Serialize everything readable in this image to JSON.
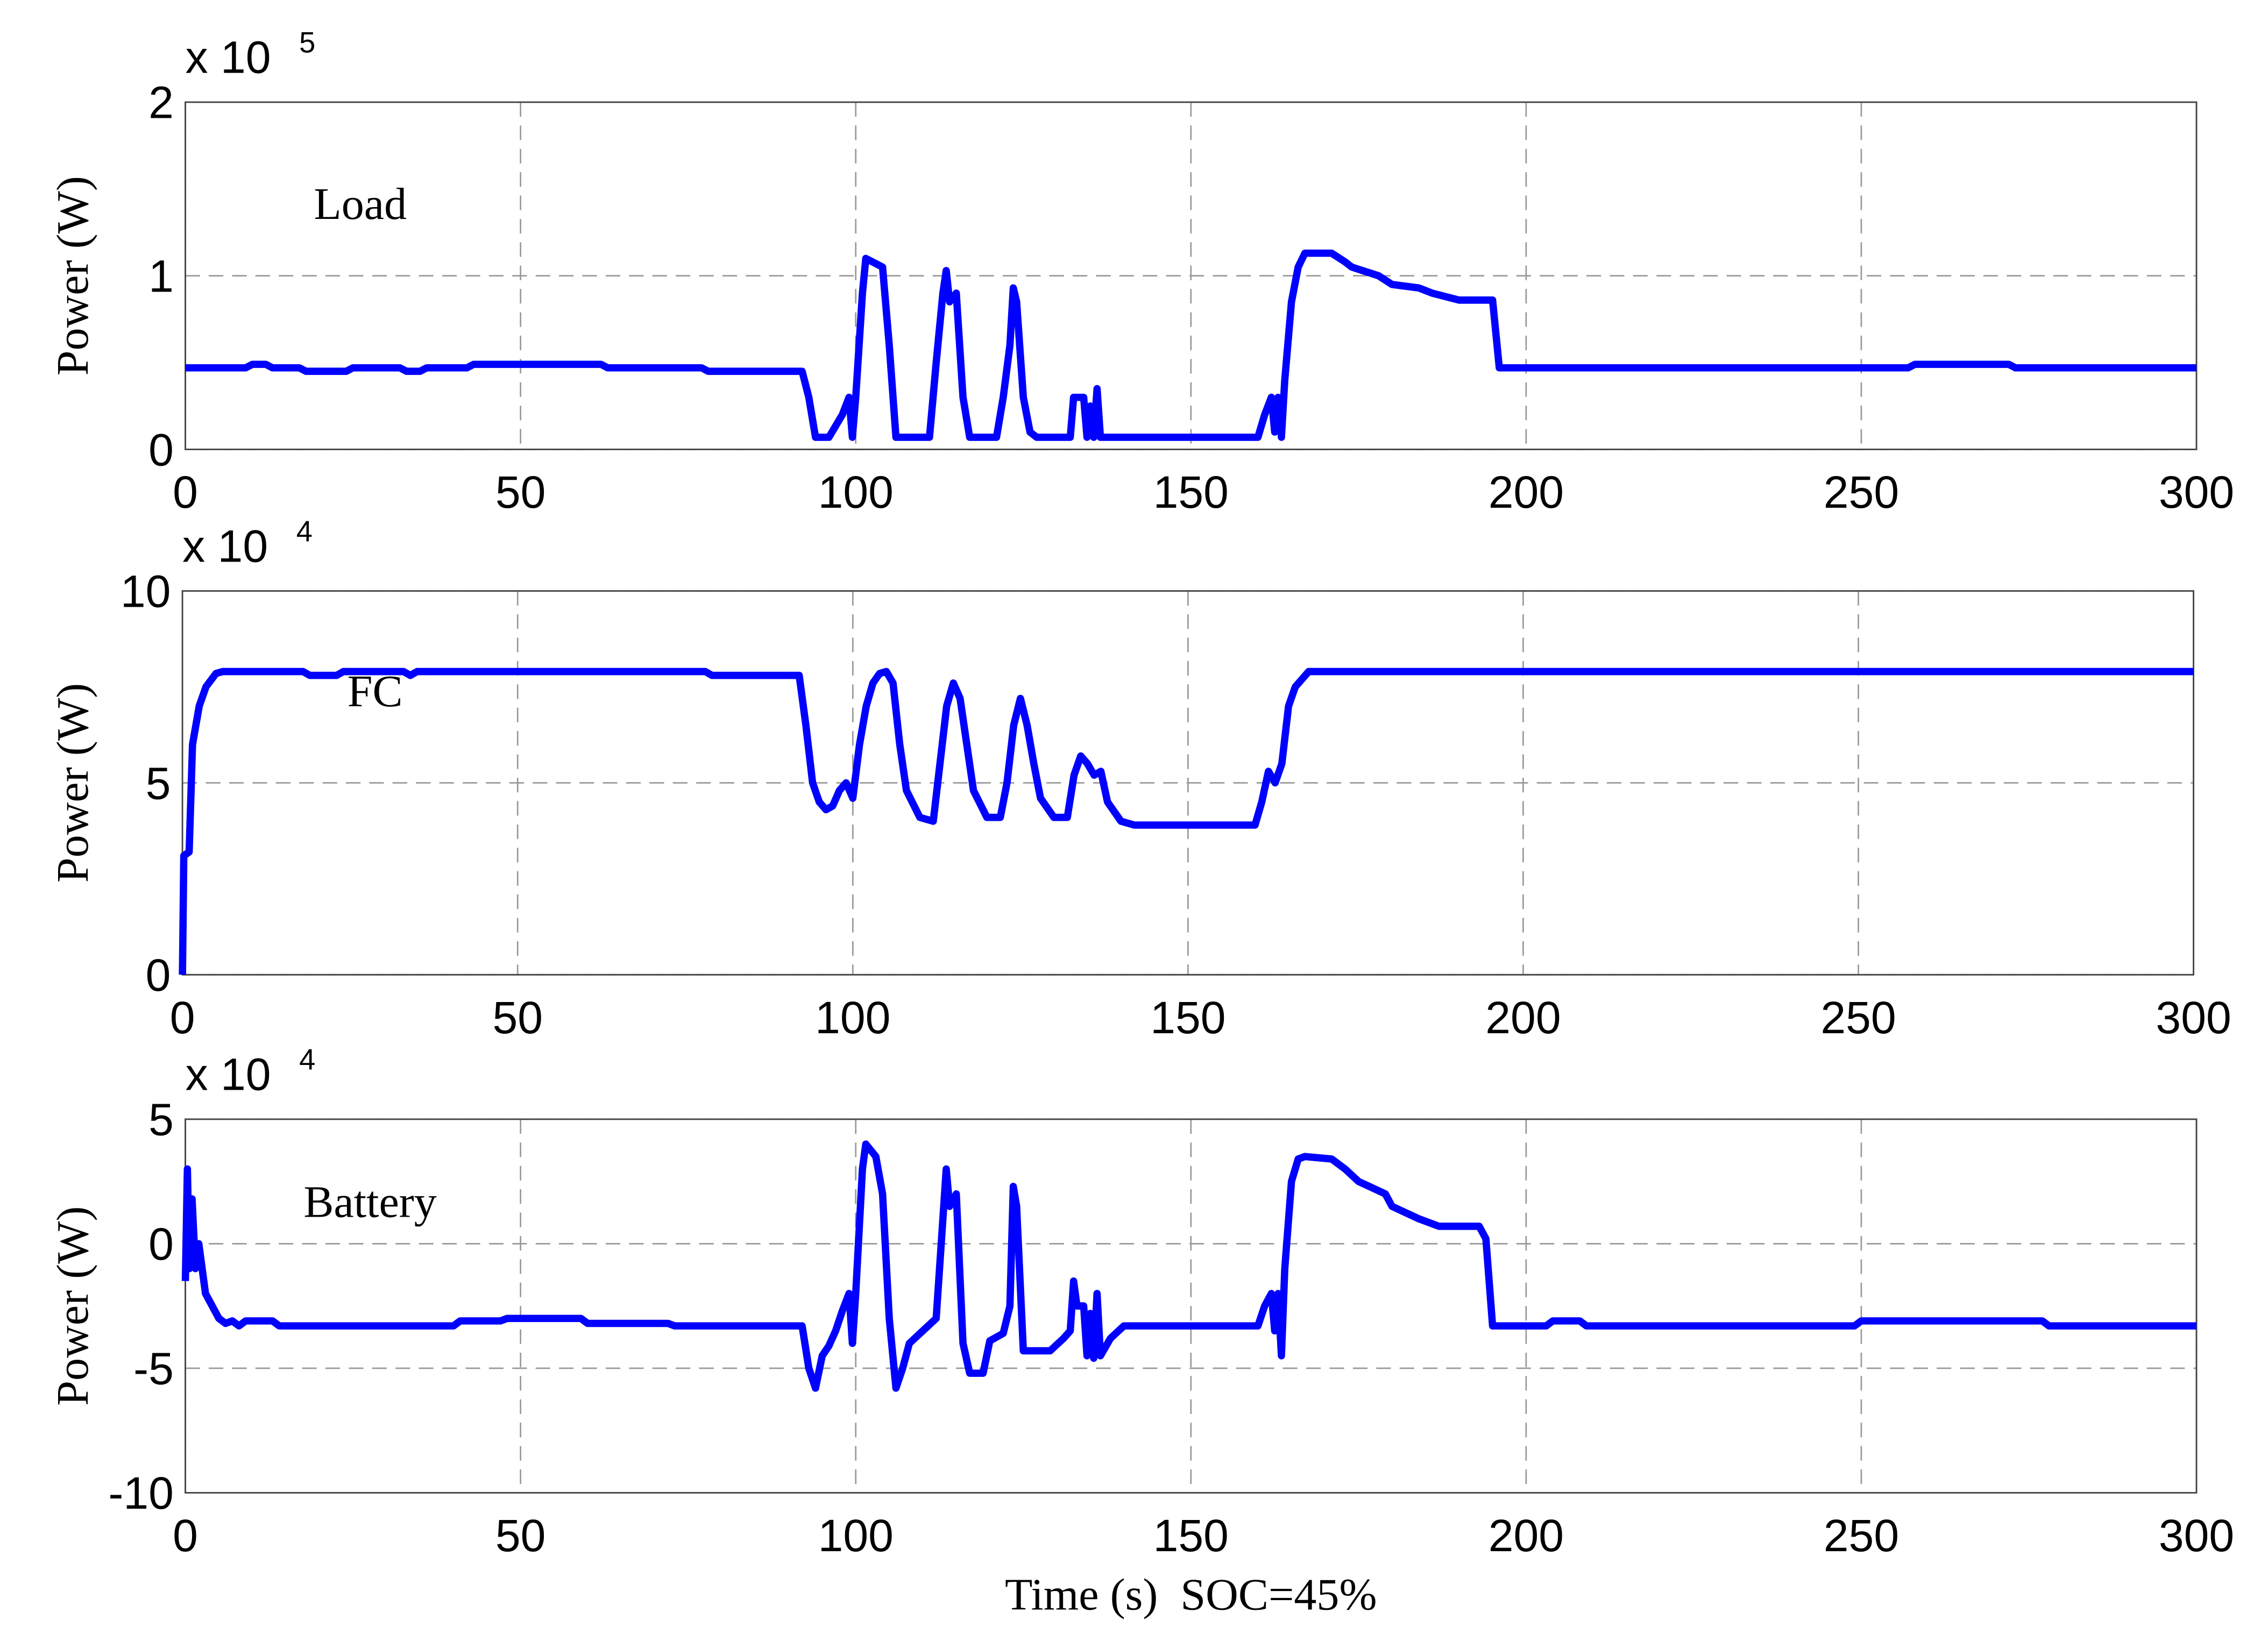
{
  "chart_data": [
    {
      "type": "line",
      "ylabel": "Power (W)",
      "multiplier": "x 10",
      "exponent": "5",
      "annotation": "Load",
      "color": "#0000ff",
      "grid": true,
      "xlim": [
        0,
        300
      ],
      "xticks": [
        0,
        50,
        100,
        150,
        200,
        250,
        300
      ],
      "ylim": [
        0,
        2
      ],
      "yticks": [
        0,
        1,
        2
      ],
      "x": [
        0,
        9,
        10,
        12,
        13,
        17,
        18,
        24,
        25,
        32,
        33,
        35,
        36,
        42,
        43,
        62,
        63,
        77,
        78,
        92,
        93,
        94,
        96,
        98,
        99,
        99.5,
        100,
        101,
        101.5,
        103,
        104,
        105,
        106,
        111,
        112,
        113,
        113.5,
        114,
        115,
        116,
        117,
        121,
        122,
        123,
        123.5,
        124,
        125,
        126,
        127,
        132,
        132.5,
        134,
        134.5,
        135,
        135.5,
        136,
        136.5,
        160,
        161,
        162,
        162.5,
        163,
        163.5,
        164,
        165,
        166,
        167,
        171,
        173,
        174,
        178,
        180,
        184,
        186,
        190,
        195,
        196,
        257,
        258,
        272,
        273,
        300
      ],
      "values": [
        0.47,
        0.47,
        0.49,
        0.49,
        0.47,
        0.47,
        0.45,
        0.45,
        0.47,
        0.47,
        0.45,
        0.45,
        0.47,
        0.47,
        0.49,
        0.49,
        0.47,
        0.47,
        0.45,
        0.45,
        0.3,
        0.07,
        0.07,
        0.2,
        0.3,
        0.07,
        0.3,
        0.9,
        1.1,
        1.07,
        1.05,
        0.6,
        0.07,
        0.07,
        0.5,
        0.9,
        1.03,
        0.85,
        0.9,
        0.3,
        0.07,
        0.07,
        0.3,
        0.6,
        0.93,
        0.85,
        0.3,
        0.1,
        0.07,
        0.07,
        0.3,
        0.3,
        0.07,
        0.25,
        0.07,
        0.35,
        0.07,
        0.07,
        0.2,
        0.3,
        0.1,
        0.3,
        0.07,
        0.4,
        0.85,
        1.05,
        1.13,
        1.13,
        1.08,
        1.05,
        1.0,
        0.95,
        0.93,
        0.9,
        0.86,
        0.86,
        0.47,
        0.47,
        0.49,
        0.49,
        0.47,
        0.47
      ]
    },
    {
      "type": "line",
      "ylabel": "Power (W)",
      "multiplier": "x 10",
      "exponent": "4",
      "annotation": "FC",
      "color": "#0000ff",
      "grid": true,
      "xlim": [
        0,
        300
      ],
      "xticks": [
        0,
        50,
        100,
        150,
        200,
        250,
        300
      ],
      "ylim": [
        0,
        10
      ],
      "yticks": [
        0,
        5,
        10
      ],
      "x": [
        0,
        0.2,
        1,
        1.5,
        2.5,
        3.5,
        5,
        6,
        18,
        19,
        23,
        24,
        33,
        34,
        35,
        78,
        79,
        92,
        93,
        94,
        95,
        96,
        97,
        98,
        99,
        100,
        101,
        102,
        103,
        104,
        105,
        106,
        107,
        108,
        110,
        112,
        113,
        114,
        115,
        116,
        117,
        118,
        120,
        122,
        123,
        124,
        125,
        126,
        127,
        128,
        130,
        132,
        133,
        134,
        135,
        136,
        137,
        138,
        140,
        142,
        160,
        161,
        162,
        163,
        164,
        165,
        166,
        168,
        300
      ],
      "values": [
        0,
        3.1,
        3.2,
        6,
        7,
        7.5,
        7.85,
        7.9,
        7.9,
        7.8,
        7.8,
        7.9,
        7.9,
        7.8,
        7.9,
        7.9,
        7.8,
        7.8,
        6.5,
        5,
        4.5,
        4.3,
        4.4,
        4.8,
        5,
        4.6,
        6,
        7,
        7.6,
        7.85,
        7.9,
        7.6,
        6,
        4.8,
        4.1,
        4,
        5.5,
        7,
        7.6,
        7.2,
        6,
        4.8,
        4.1,
        4.1,
        5,
        6.5,
        7.2,
        6.5,
        5.5,
        4.6,
        4.1,
        4.1,
        5.2,
        5.7,
        5.5,
        5.2,
        5.3,
        4.5,
        4,
        3.9,
        3.9,
        4.5,
        5.3,
        5,
        5.5,
        7,
        7.5,
        7.9,
        7.9
      ]
    },
    {
      "type": "line",
      "ylabel": "Power (W)",
      "multiplier": "x 10",
      "exponent": "4",
      "annotation": "Battery",
      "xlabel": "Time (s)  SOC=45%",
      "color": "#0000ff",
      "grid": true,
      "xlim": [
        0,
        300
      ],
      "xticks": [
        0,
        50,
        100,
        150,
        200,
        250,
        300
      ],
      "ylim": [
        -10,
        5
      ],
      "yticks": [
        -10,
        -5,
        0,
        5
      ],
      "x": [
        0,
        0.3,
        0.6,
        1,
        1.5,
        2,
        3,
        5,
        6,
        7,
        8,
        9,
        13,
        14,
        40,
        41,
        47,
        48,
        59,
        60,
        72,
        73,
        92,
        93,
        94,
        95,
        96,
        97,
        98,
        99,
        99.5,
        100,
        101,
        101.5,
        103,
        104,
        105,
        106,
        107,
        108,
        110,
        112,
        113,
        113.5,
        114,
        115,
        116,
        117,
        119,
        120,
        122,
        123,
        123.5,
        124,
        125,
        129,
        131,
        132,
        132.5,
        133,
        134,
        134.5,
        135,
        135.5,
        136,
        136.5,
        138,
        140,
        160,
        161,
        162,
        162.5,
        163,
        163.5,
        164,
        165,
        166,
        167,
        171,
        173,
        175,
        179,
        180,
        184,
        187,
        193,
        194,
        195,
        203,
        204,
        208,
        209,
        249,
        250,
        277,
        278,
        300
      ],
      "values": [
        -1.5,
        3,
        -1,
        1.8,
        -1,
        0,
        -2,
        -3,
        -3.2,
        -3.1,
        -3.3,
        -3.1,
        -3.1,
        -3.3,
        -3.3,
        -3.1,
        -3.1,
        -3,
        -3,
        -3.2,
        -3.2,
        -3.3,
        -3.3,
        -5,
        -5.8,
        -4.5,
        -4.1,
        -3.5,
        -2.7,
        -2,
        -4,
        -2,
        3,
        4,
        3.5,
        2,
        -3,
        -5.8,
        -5,
        -4,
        -3.5,
        -3,
        1,
        3,
        1.5,
        2,
        -4,
        -5.2,
        -5.2,
        -3.9,
        -3.6,
        -2.5,
        2.3,
        1.5,
        -4.3,
        -4.3,
        -3.8,
        -3.5,
        -1.5,
        -2.5,
        -2.5,
        -4.5,
        -2.8,
        -4.6,
        -2,
        -4.5,
        -3.8,
        -3.3,
        -3.3,
        -2.5,
        -2,
        -3.5,
        -2,
        -4.5,
        -1,
        2.5,
        3.4,
        3.5,
        3.4,
        3,
        2.5,
        2,
        1.5,
        1,
        0.7,
        0.7,
        0.2,
        -3.3,
        -3.3,
        -3.1,
        -3.1,
        -3.3,
        -3.3,
        -3.1,
        -3.1,
        -3.3,
        -3.3
      ]
    }
  ]
}
